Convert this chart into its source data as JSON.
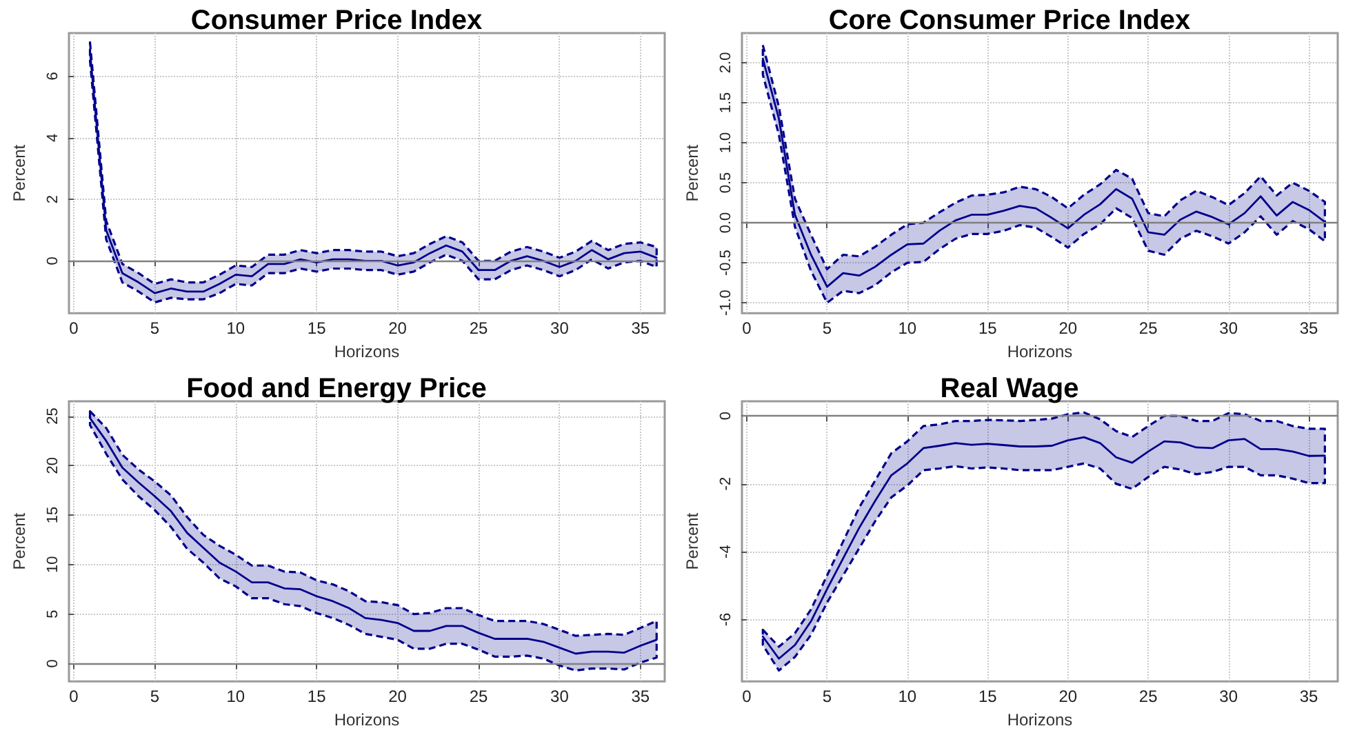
{
  "chart_data": [
    {
      "type": "line",
      "title": "Consumer Price Index",
      "xlabel": "Horizons",
      "ylabel": "Percent",
      "x": [
        1,
        2,
        3,
        4,
        5,
        6,
        7,
        8,
        9,
        10,
        11,
        12,
        13,
        14,
        15,
        16,
        17,
        18,
        19,
        20,
        21,
        22,
        23,
        24,
        25,
        26,
        27,
        28,
        29,
        30,
        31,
        32,
        33,
        34,
        35,
        36
      ],
      "xlim": [
        -0.3,
        36.5
      ],
      "xticks": [
        0,
        5,
        10,
        15,
        20,
        25,
        30,
        35
      ],
      "ylim": [
        -1.7,
        7.4
      ],
      "yticks": [
        0,
        2,
        4,
        6
      ],
      "grid": true,
      "line_style": "solid",
      "marker": "none",
      "series": [
        {
          "color": "#00008b",
          "values": [
            6.8,
            1.0,
            -0.4,
            -0.7,
            -1.05,
            -0.9,
            -1.0,
            -1.0,
            -0.75,
            -0.45,
            -0.5,
            -0.1,
            -0.1,
            0.05,
            -0.05,
            0.05,
            0.05,
            0.0,
            0.0,
            -0.15,
            -0.05,
            0.25,
            0.5,
            0.3,
            -0.3,
            -0.3,
            0.0,
            0.15,
            0.0,
            -0.2,
            0.0,
            0.35,
            0.05,
            0.25,
            0.3,
            0.1
          ],
          "lower": [
            6.5,
            0.7,
            -0.7,
            -1.0,
            -1.35,
            -1.2,
            -1.25,
            -1.25,
            -1.05,
            -0.75,
            -0.8,
            -0.4,
            -0.4,
            -0.25,
            -0.35,
            -0.25,
            -0.25,
            -0.3,
            -0.3,
            -0.45,
            -0.35,
            -0.05,
            0.2,
            0.0,
            -0.6,
            -0.6,
            -0.3,
            -0.15,
            -0.3,
            -0.5,
            -0.3,
            0.05,
            -0.25,
            -0.05,
            0.0,
            -0.2
          ],
          "upper": [
            7.1,
            1.3,
            -0.1,
            -0.4,
            -0.75,
            -0.6,
            -0.7,
            -0.7,
            -0.45,
            -0.15,
            -0.2,
            0.2,
            0.2,
            0.35,
            0.25,
            0.35,
            0.35,
            0.3,
            0.3,
            0.15,
            0.25,
            0.55,
            0.8,
            0.6,
            0.0,
            0.0,
            0.3,
            0.45,
            0.3,
            0.1,
            0.3,
            0.65,
            0.35,
            0.55,
            0.6,
            0.45
          ]
        }
      ],
      "ref_lines": [
        {
          "axis": "y",
          "value": 0,
          "color": "#808080"
        }
      ]
    },
    {
      "type": "line",
      "title": "Core Consumer Price Index",
      "xlabel": "Horizons",
      "ylabel": "Percent",
      "x": [
        1,
        2,
        3,
        4,
        5,
        6,
        7,
        8,
        9,
        10,
        11,
        12,
        13,
        14,
        15,
        16,
        17,
        18,
        19,
        20,
        21,
        22,
        23,
        24,
        25,
        26,
        27,
        28,
        29,
        30,
        31,
        32,
        33,
        34,
        35,
        36
      ],
      "xlim": [
        -0.3,
        36.8
      ],
      "xticks": [
        0,
        5,
        10,
        15,
        20,
        25,
        30,
        35
      ],
      "ylim": [
        -1.13,
        2.37
      ],
      "yticks": [
        {
          "value": -1,
          "label": "-1.0"
        },
        -0.5,
        {
          "value": 0,
          "label": "0.0"
        },
        0.5,
        {
          "value": 1,
          "label": "1.0"
        },
        1.5,
        {
          "value": 2,
          "label": "2.0"
        }
      ],
      "grid": true,
      "line_style": "solid",
      "marker": "none",
      "series": [
        {
          "color": "#00008b",
          "values": [
            2.05,
            1.3,
            0.1,
            -0.4,
            -0.8,
            -0.63,
            -0.66,
            -0.55,
            -0.4,
            -0.27,
            -0.26,
            -0.1,
            0.03,
            0.1,
            0.1,
            0.15,
            0.21,
            0.18,
            0.06,
            -0.07,
            0.1,
            0.23,
            0.42,
            0.3,
            -0.12,
            -0.15,
            0.04,
            0.14,
            0.07,
            -0.02,
            0.12,
            0.33,
            0.09,
            0.26,
            0.16,
            0.01
          ],
          "lower": [
            1.85,
            1.1,
            -0.05,
            -0.6,
            -1.0,
            -0.85,
            -0.88,
            -0.78,
            -0.62,
            -0.5,
            -0.49,
            -0.33,
            -0.2,
            -0.14,
            -0.14,
            -0.1,
            -0.03,
            -0.06,
            -0.18,
            -0.31,
            -0.14,
            -0.02,
            0.18,
            0.06,
            -0.35,
            -0.4,
            -0.2,
            -0.1,
            -0.17,
            -0.26,
            -0.12,
            0.08,
            -0.15,
            0.02,
            -0.08,
            -0.23
          ],
          "upper": [
            2.22,
            1.45,
            0.3,
            -0.15,
            -0.58,
            -0.4,
            -0.42,
            -0.3,
            -0.15,
            -0.02,
            0.0,
            0.13,
            0.25,
            0.34,
            0.35,
            0.38,
            0.45,
            0.42,
            0.32,
            0.18,
            0.35,
            0.48,
            0.66,
            0.55,
            0.12,
            0.08,
            0.28,
            0.4,
            0.32,
            0.22,
            0.37,
            0.58,
            0.34,
            0.5,
            0.4,
            0.26
          ]
        }
      ],
      "ref_lines": [
        {
          "axis": "y",
          "value": 0,
          "color": "#808080"
        }
      ]
    },
    {
      "type": "line",
      "title": "Food and Energy Price",
      "xlabel": "Horizons",
      "ylabel": "Percent",
      "x": [
        1,
        2,
        3,
        4,
        5,
        6,
        7,
        8,
        9,
        10,
        11,
        12,
        13,
        14,
        15,
        16,
        17,
        18,
        19,
        20,
        21,
        22,
        23,
        24,
        25,
        26,
        27,
        28,
        29,
        30,
        31,
        32,
        33,
        34,
        35,
        36
      ],
      "xlim": [
        -0.3,
        36.5
      ],
      "xticks": [
        0,
        5,
        10,
        15,
        20,
        25,
        30,
        35
      ],
      "ylim": [
        -1.8,
        26.5
      ],
      "yticks": [
        0,
        5,
        10,
        15,
        20,
        25
      ],
      "grid": true,
      "line_style": "solid",
      "marker": "none",
      "series": [
        {
          "color": "#00008b",
          "values": [
            24.8,
            22.5,
            19.8,
            18.3,
            16.9,
            15.4,
            13.2,
            11.7,
            10.2,
            9.3,
            8.2,
            8.2,
            7.6,
            7.5,
            6.8,
            6.3,
            5.6,
            4.6,
            4.4,
            4.1,
            3.3,
            3.3,
            3.8,
            3.8,
            3.1,
            2.5,
            2.5,
            2.5,
            2.2,
            1.6,
            1.0,
            1.2,
            1.2,
            1.1,
            1.8,
            2.4
          ],
          "lower": [
            24.1,
            21.2,
            18.6,
            16.9,
            15.5,
            13.8,
            11.6,
            10.2,
            8.6,
            7.8,
            6.6,
            6.6,
            6.0,
            5.8,
            5.1,
            4.6,
            3.9,
            3.0,
            2.7,
            2.4,
            1.5,
            1.5,
            2.0,
            2.0,
            1.4,
            0.7,
            0.7,
            0.8,
            0.5,
            -0.2,
            -0.7,
            -0.5,
            -0.5,
            -0.6,
            0.1,
            0.6
          ],
          "upper": [
            25.5,
            23.8,
            21.1,
            19.6,
            18.4,
            17.0,
            14.8,
            13.0,
            11.9,
            11.0,
            9.9,
            9.9,
            9.3,
            9.2,
            8.4,
            8.0,
            7.3,
            6.3,
            6.2,
            5.9,
            5.0,
            5.1,
            5.6,
            5.6,
            4.9,
            4.3,
            4.3,
            4.3,
            4.0,
            3.4,
            2.8,
            2.9,
            3.0,
            2.9,
            3.6,
            4.3
          ]
        }
      ],
      "ref_lines": [
        {
          "axis": "y",
          "value": 0,
          "color": "#808080"
        }
      ]
    },
    {
      "type": "line",
      "title": "Real Wage",
      "xlabel": "Horizons",
      "ylabel": "Percent",
      "x": [
        1,
        2,
        3,
        4,
        5,
        6,
        7,
        8,
        9,
        10,
        11,
        12,
        13,
        14,
        15,
        16,
        17,
        18,
        19,
        20,
        21,
        22,
        23,
        24,
        25,
        26,
        27,
        28,
        29,
        30,
        31,
        32,
        33,
        34,
        35,
        36
      ],
      "xlim": [
        -0.3,
        36.8
      ],
      "xticks": [
        0,
        5,
        10,
        15,
        20,
        25,
        30,
        35
      ],
      "ylim": [
        -7.82,
        0.43
      ],
      "yticks": [
        -6,
        -4,
        -2,
        0
      ],
      "grid": true,
      "line_style": "solid",
      "marker": "none",
      "series": [
        {
          "color": "#00008b",
          "values": [
            -6.5,
            -7.15,
            -6.75,
            -6.05,
            -5.1,
            -4.2,
            -3.3,
            -2.5,
            -1.75,
            -1.4,
            -0.95,
            -0.88,
            -0.8,
            -0.85,
            -0.82,
            -0.86,
            -0.9,
            -0.9,
            -0.88,
            -0.72,
            -0.63,
            -0.8,
            -1.22,
            -1.38,
            -1.05,
            -0.75,
            -0.78,
            -0.93,
            -0.95,
            -0.72,
            -0.68,
            -0.98,
            -0.98,
            -1.05,
            -1.18,
            -1.17
          ],
          "lower": [
            -6.75,
            -7.5,
            -7.1,
            -6.45,
            -5.5,
            -4.7,
            -3.9,
            -3.1,
            -2.4,
            -2.05,
            -1.6,
            -1.55,
            -1.48,
            -1.55,
            -1.52,
            -1.55,
            -1.6,
            -1.6,
            -1.6,
            -1.5,
            -1.4,
            -1.55,
            -2.0,
            -2.15,
            -1.8,
            -1.5,
            -1.58,
            -1.72,
            -1.65,
            -1.5,
            -1.5,
            -1.75,
            -1.75,
            -1.85,
            -1.98,
            -1.98
          ],
          "upper": [
            -6.3,
            -6.8,
            -6.4,
            -5.7,
            -4.7,
            -3.7,
            -2.7,
            -1.9,
            -1.1,
            -0.75,
            -0.3,
            -0.25,
            -0.15,
            -0.15,
            -0.12,
            -0.13,
            -0.15,
            -0.12,
            -0.08,
            0.05,
            0.1,
            -0.1,
            -0.45,
            -0.62,
            -0.3,
            0.0,
            0.0,
            -0.15,
            -0.15,
            0.08,
            0.05,
            -0.15,
            -0.15,
            -0.3,
            -0.38,
            -0.38
          ]
        }
      ],
      "ref_lines": [
        {
          "axis": "y",
          "value": 0,
          "color": "#808080"
        }
      ]
    }
  ]
}
